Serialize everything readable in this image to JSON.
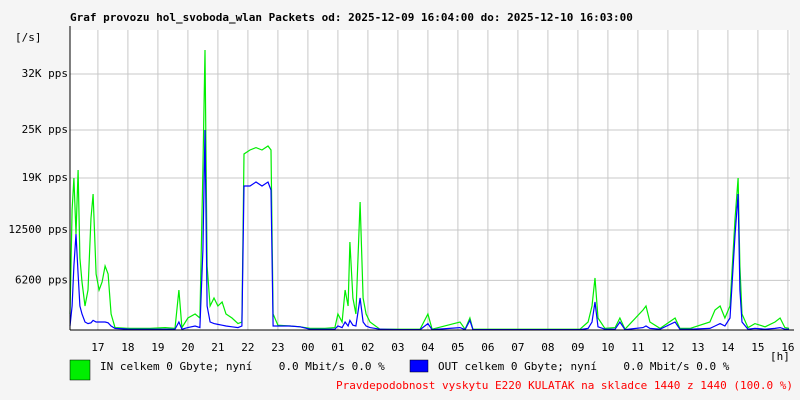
{
  "chart_data": {
    "type": "line",
    "title": "Graf provozu hol_svoboda_wlan Packets od: 2025-12-09 16:04:00 do: 2025-12-10 16:03:00",
    "y_label": "[/s]",
    "x_label": "[h]",
    "x": [
      0,
      0.07,
      0.13,
      0.2,
      0.27,
      0.33,
      0.4,
      0.5,
      0.6,
      0.7,
      0.77,
      0.87,
      0.97,
      1.07,
      1.17,
      1.27,
      1.37,
      1.5,
      2,
      2.67,
      3.17,
      3.5,
      3.63,
      3.73,
      3.93,
      4.17,
      4.33,
      4.43,
      4.5,
      4.57,
      4.67,
      4.8,
      4.93,
      5.07,
      5.2,
      5.4,
      5.6,
      5.73,
      5.8,
      6,
      6.2,
      6.4,
      6.6,
      6.7,
      6.77,
      6.93,
      7.33,
      7.67,
      8,
      8.5,
      8.83,
      8.93,
      9.07,
      9.17,
      9.27,
      9.33,
      9.43,
      9.53,
      9.67,
      9.77,
      9.87,
      10,
      10.33,
      11,
      11.67,
      11.93,
      12.07,
      13,
      13.17,
      13.33,
      13.43,
      14.33,
      15.67,
      17,
      17.27,
      17.4,
      17.5,
      17.6,
      17.83,
      18.17,
      18.33,
      18.5,
      19.1,
      19.2,
      19.33,
      19.67,
      20.17,
      20.33,
      20.67,
      21.33,
      21.5,
      21.67,
      21.83,
      22,
      22.17,
      22.27,
      22.33,
      22.4,
      22.6,
      22.83,
      23.17,
      23.5,
      23.67,
      23.83,
      23.97
    ],
    "series": [
      {
        "name": "IN celkem 0 Gbyte; nyní    0.0 Mbit/s 0.0 %",
        "color": "#00ee00",
        "values": [
          2000,
          15000,
          19000,
          12000,
          20000,
          9000,
          6000,
          3000,
          5000,
          14000,
          17000,
          7000,
          5000,
          6000,
          8000,
          7000,
          2000,
          300,
          200,
          200,
          300,
          200,
          5000,
          300,
          1500,
          2000,
          1500,
          20000,
          35000,
          8000,
          3000,
          4000,
          3000,
          3500,
          2000,
          1500,
          800,
          1000,
          22000,
          22500,
          22800,
          22500,
          23000,
          22500,
          2000,
          600,
          500,
          400,
          200,
          200,
          300,
          2000,
          1000,
          5000,
          3000,
          11000,
          4000,
          2000,
          16000,
          4000,
          2000,
          1000,
          100,
          100,
          100,
          2000,
          100,
          1000,
          100,
          1500,
          100,
          100,
          100,
          100,
          1000,
          3000,
          6500,
          1500,
          200,
          300,
          1500,
          100,
          2500,
          3000,
          1000,
          200,
          1500,
          200,
          200,
          1000,
          2500,
          3000,
          1500,
          3000,
          14000,
          19000,
          8000,
          2000,
          300,
          800,
          400,
          1000,
          1500,
          300,
          200
        ]
      },
      {
        "name": "OUT celkem 0 Gbyte; nyní    0.0 Mbit/s 0.0 %",
        "color": "#0000ff",
        "values": [
          500,
          3000,
          8000,
          12000,
          7000,
          3000,
          2000,
          1000,
          800,
          900,
          1200,
          1000,
          1000,
          1000,
          1000,
          900,
          500,
          200,
          100,
          100,
          100,
          100,
          1000,
          100,
          300,
          500,
          300,
          10000,
          25000,
          3000,
          1000,
          800,
          700,
          600,
          500,
          400,
          300,
          500,
          18000,
          18000,
          18500,
          18000,
          18500,
          17500,
          500,
          500,
          500,
          400,
          100,
          100,
          100,
          500,
          300,
          1000,
          500,
          1200,
          600,
          500,
          4000,
          1000,
          500,
          300,
          100,
          50,
          50,
          800,
          50,
          300,
          50,
          1200,
          50,
          50,
          50,
          50,
          200,
          1000,
          3500,
          400,
          100,
          100,
          1000,
          50,
          300,
          500,
          200,
          100,
          1000,
          100,
          100,
          200,
          500,
          800,
          500,
          1500,
          12000,
          17000,
          5000,
          1000,
          100,
          200,
          100,
          200,
          300,
          100,
          100
        ]
      }
    ],
    "xlim": [
      0,
      24
    ],
    "xticks": [
      {
        "value": 0.93,
        "label": "17"
      },
      {
        "value": 1.93,
        "label": "18"
      },
      {
        "value": 2.93,
        "label": "19"
      },
      {
        "value": 3.93,
        "label": "20"
      },
      {
        "value": 4.93,
        "label": "21"
      },
      {
        "value": 5.93,
        "label": "22"
      },
      {
        "value": 6.93,
        "label": "23"
      },
      {
        "value": 7.93,
        "label": "00"
      },
      {
        "value": 8.93,
        "label": "01"
      },
      {
        "value": 9.93,
        "label": "02"
      },
      {
        "value": 10.93,
        "label": "03"
      },
      {
        "value": 11.93,
        "label": "04"
      },
      {
        "value": 12.93,
        "label": "05"
      },
      {
        "value": 13.93,
        "label": "06"
      },
      {
        "value": 14.93,
        "label": "07"
      },
      {
        "value": 15.93,
        "label": "08"
      },
      {
        "value": 16.93,
        "label": "09"
      },
      {
        "value": 17.93,
        "label": "10"
      },
      {
        "value": 18.93,
        "label": "11"
      },
      {
        "value": 19.93,
        "label": "12"
      },
      {
        "value": 20.93,
        "label": "13"
      },
      {
        "value": 21.93,
        "label": "14"
      },
      {
        "value": 22.93,
        "label": "15"
      },
      {
        "value": 23.93,
        "label": "16"
      }
    ],
    "ylim": [
      0,
      37500
    ],
    "yticks": [
      {
        "value": 6200,
        "label": "6200 pps"
      },
      {
        "value": 12500,
        "label": "12500 pps"
      },
      {
        "value": 19000,
        "label": "19K pps"
      },
      {
        "value": 25000,
        "label": "25K pps"
      },
      {
        "value": 32000,
        "label": "32K pps"
      }
    ],
    "grid": true,
    "note": "Pravdepodobnost vyskytu E220 KULATAK na skladce 1440 z 1440 (100.0 %)",
    "note_color": "#ff0000"
  }
}
